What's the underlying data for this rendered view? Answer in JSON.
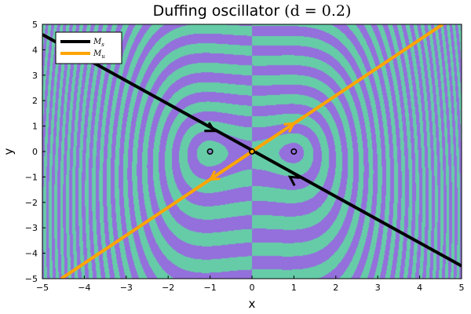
{
  "chart_data": {
    "type": "heatmap",
    "title_text": "Duffing oscillator",
    "title_math": "(d = 0.2)",
    "xlabel": "x",
    "ylabel": "y",
    "xlim": [
      -5,
      5
    ],
    "ylim": [
      -5,
      5
    ],
    "xticks": [
      -5,
      -4,
      -3,
      -2,
      -1,
      0,
      1,
      2,
      3,
      4,
      5
    ],
    "yticks": [
      -5,
      -4,
      -3,
      -2,
      -1,
      0,
      1,
      2,
      3,
      4,
      5
    ],
    "grid": false,
    "legend_position": "top-left",
    "background_colors": {
      "basin_a": "#66cca8",
      "basin_b": "#9370db"
    },
    "equilibria": [
      {
        "x": -1,
        "y": 0,
        "kind": "stable"
      },
      {
        "x": 0,
        "y": 0,
        "kind": "saddle"
      },
      {
        "x": 1,
        "y": 0,
        "kind": "stable"
      }
    ],
    "series": [
      {
        "name": "M_s",
        "label_main": "M",
        "label_sub": "s",
        "color": "#000000",
        "x": [
          -5,
          5
        ],
        "y": [
          4.6,
          -4.5
        ],
        "arrows": [
          {
            "x": -1.0,
            "y": 0.9,
            "direction": "toward-origin"
          },
          {
            "x": 1.0,
            "y": -1.1,
            "direction": "toward-origin"
          }
        ]
      },
      {
        "name": "M_u",
        "label_main": "M",
        "label_sub": "u",
        "color": "#ffa500",
        "x": [
          -4.55,
          4.55
        ],
        "y": [
          -5,
          5
        ],
        "arrows": [
          {
            "x": 0.9,
            "y": 1.0,
            "direction": "away-from-origin"
          },
          {
            "x": -0.9,
            "y": -1.0,
            "direction": "away-from-origin"
          }
        ]
      }
    ]
  }
}
